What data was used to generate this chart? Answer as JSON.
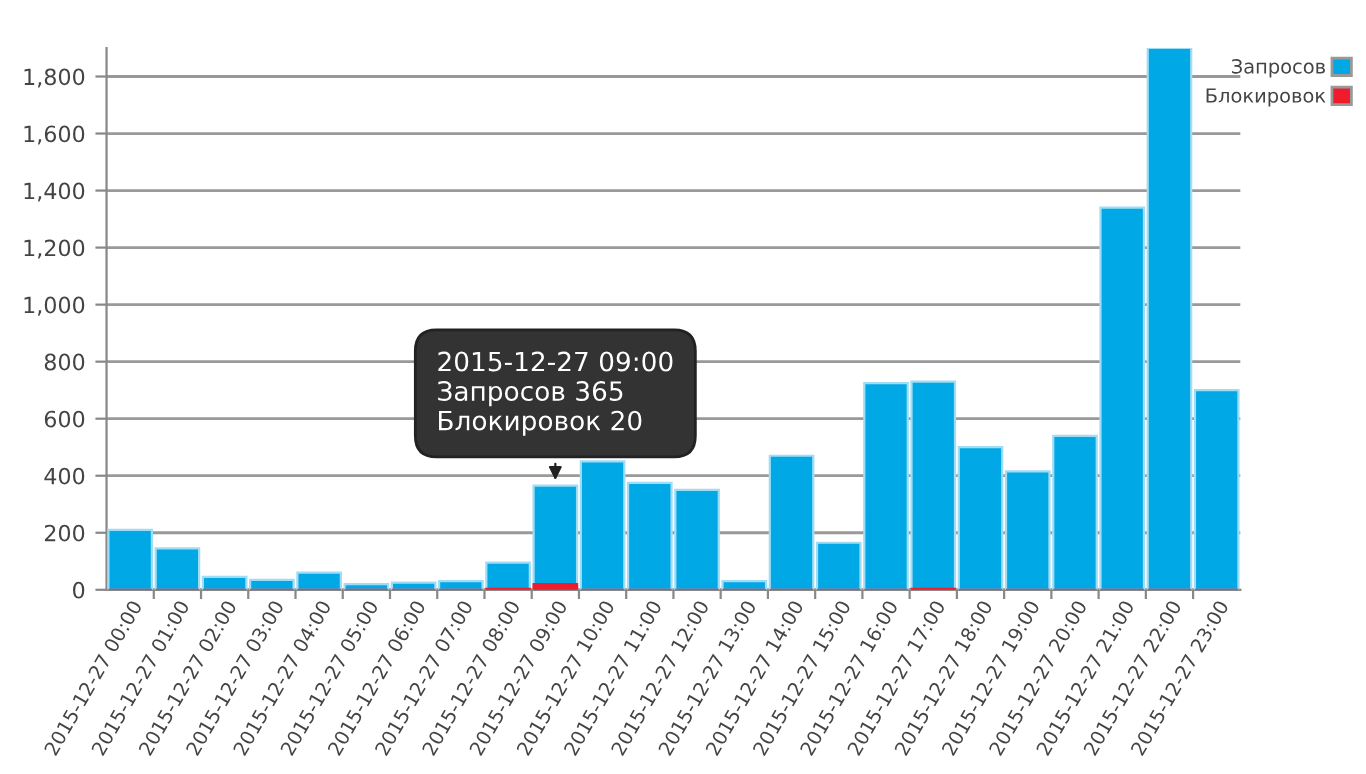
{
  "chart_data": {
    "type": "bar",
    "categories": [
      "2015-12-27 00:00",
      "2015-12-27 01:00",
      "2015-12-27 02:00",
      "2015-12-27 03:00",
      "2015-12-27 04:00",
      "2015-12-27 05:00",
      "2015-12-27 06:00",
      "2015-12-27 07:00",
      "2015-12-27 08:00",
      "2015-12-27 09:00",
      "2015-12-27 10:00",
      "2015-12-27 11:00",
      "2015-12-27 12:00",
      "2015-12-27 13:00",
      "2015-12-27 14:00",
      "2015-12-27 15:00",
      "2015-12-27 16:00",
      "2015-12-27 17:00",
      "2015-12-27 18:00",
      "2015-12-27 19:00",
      "2015-12-27 20:00",
      "2015-12-27 21:00",
      "2015-12-27 22:00",
      "2015-12-27 23:00"
    ],
    "series": [
      {
        "name": "Запросов",
        "color": "#00a8e6",
        "values": [
          210,
          145,
          45,
          35,
          60,
          20,
          25,
          30,
          95,
          365,
          450,
          375,
          350,
          30,
          470,
          165,
          725,
          730,
          500,
          415,
          540,
          1340,
          1900,
          700
        ]
      },
      {
        "name": "Блокировок",
        "color": "#ee1c2c",
        "values": [
          0,
          0,
          0,
          0,
          0,
          0,
          0,
          0,
          3,
          20,
          0,
          0,
          0,
          0,
          0,
          0,
          0,
          3,
          0,
          0,
          0,
          0,
          0,
          0
        ]
      }
    ],
    "ylim": [
      0,
      1900
    ],
    "yticks": [
      0,
      {
        "value": 200,
        "label": "200"
      },
      {
        "value": 400,
        "label": "400"
      },
      {
        "value": 600,
        "label": "600"
      },
      {
        "value": 800,
        "label": "800"
      },
      {
        "value": 1000,
        "label": "1,000"
      },
      {
        "value": 1200,
        "label": "1,200"
      },
      {
        "value": 1400,
        "label": "1,400"
      },
      {
        "value": 1600,
        "label": "1,600"
      },
      {
        "value": 1800,
        "label": "1,800"
      }
    ],
    "grid": "y",
    "legend": "top right",
    "annotations": [
      {
        "text": "2015-12-27 09:00\nЗапросов 365\nБлокировок 20",
        "x": "2015-12-27 09:00",
        "y": 365
      }
    ]
  }
}
